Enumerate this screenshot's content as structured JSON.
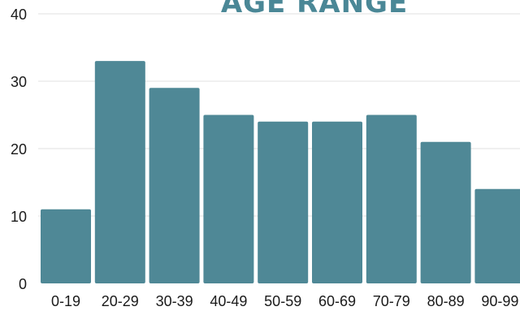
{
  "chart_data": {
    "type": "bar",
    "title": "AGE RANGE",
    "xlabel": "",
    "ylabel": "",
    "categories": [
      "0-19",
      "20-29",
      "30-39",
      "40-49",
      "50-59",
      "60-69",
      "70-79",
      "80-89",
      "90-99"
    ],
    "values": [
      11,
      33,
      29,
      25,
      24,
      24,
      25,
      21,
      14
    ],
    "ylim": [
      0,
      40
    ],
    "yticks": [
      "0",
      "10",
      "20",
      "30",
      "40"
    ],
    "grid": true,
    "bar_color": "#4f8896"
  }
}
